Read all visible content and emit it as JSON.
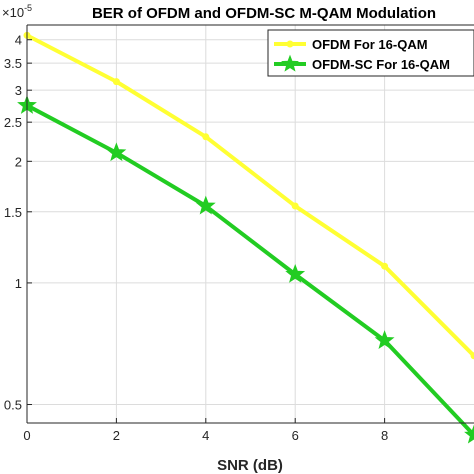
{
  "chart_data": {
    "type": "line",
    "title": "BER of OFDM and OFDM-SC M-QAM Modulation",
    "xlabel": "SNR (dB)",
    "ylabel": "",
    "exponent_label": "×10",
    "exponent_power": "-5",
    "y_scale": "log",
    "xlim": [
      0,
      10
    ],
    "ylim": [
      0.45,
      4.35
    ],
    "grid": true,
    "legend_position": "top-right",
    "x_ticks": [
      0,
      2,
      4,
      6,
      8
    ],
    "x_tick_labels": [
      "0",
      "2",
      "4",
      "6",
      "8"
    ],
    "y_ticks": [
      0.5,
      1,
      1.5,
      2,
      2.5,
      3,
      3.5,
      4
    ],
    "y_tick_labels": [
      "0.5",
      "1",
      "1.5",
      "2",
      "2.5",
      "3",
      "3.5",
      "4"
    ],
    "series": [
      {
        "name": "OFDM For 16-QAM",
        "color": "#ffff33",
        "marker": "dot",
        "x": [
          0,
          2,
          4,
          6,
          8,
          10
        ],
        "y": [
          4.1,
          3.15,
          2.3,
          1.55,
          1.1,
          0.66
        ]
      },
      {
        "name": "OFDM-SC For 16-QAM",
        "color": "#22cc22",
        "marker": "star",
        "x": [
          0,
          2,
          4,
          6,
          8,
          10
        ],
        "y": [
          2.75,
          2.1,
          1.55,
          1.05,
          0.72,
          0.42
        ]
      }
    ]
  }
}
